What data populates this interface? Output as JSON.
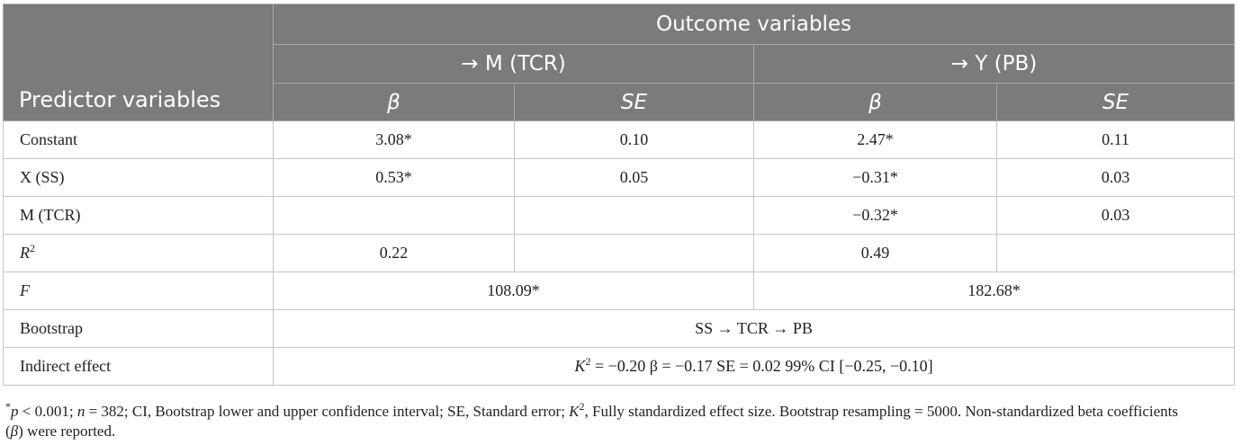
{
  "header": {
    "outcome": "Outcome variables",
    "predictor": "Predictor variables",
    "group_m": "→ M (TCR)",
    "group_y": "→ Y (PB)",
    "beta": "β",
    "se": "SE"
  },
  "rows": [
    {
      "label": "Constant",
      "m_beta": "3.08*",
      "m_se": "0.10",
      "y_beta": "2.47*",
      "y_se": "0.11"
    },
    {
      "label": "X (SS)",
      "m_beta": "0.53*",
      "m_se": "0.05",
      "y_beta": "−0.31*",
      "y_se": "0.03"
    },
    {
      "label": "M (TCR)",
      "m_beta": "",
      "m_se": "",
      "y_beta": "−0.32*",
      "y_se": "0.03"
    },
    {
      "label_base": "R",
      "label_sup": "2",
      "m_beta": "0.22",
      "m_se": "",
      "y_beta": "0.49",
      "y_se": ""
    }
  ],
  "f_row": {
    "label": "F",
    "m": "108.09*",
    "y": "182.68*"
  },
  "bootstrap_row": {
    "label": "Bootstrap",
    "value": "SS → TCR → PB"
  },
  "indirect_row": {
    "label": "Indirect effect",
    "k": "K",
    "k_sup": "2",
    "rest": " = −0.20 β = −0.17 SE = 0.02 99% CI [−0.25, −0.10]"
  },
  "note": {
    "star": "*",
    "p": "p",
    "p_rest": " < 0.001; ",
    "n": "n",
    "n_rest": " = 382; CI, Bootstrap lower and upper confidence interval; SE, Standard error; ",
    "k": "K",
    "k_sup": "2",
    "k_rest": ", Fully standardized effect size. Bootstrap resampling = 5000. Non-standardized beta coefficients",
    "line2_open": "(",
    "beta": "β",
    "line2_rest": ") were reported."
  }
}
